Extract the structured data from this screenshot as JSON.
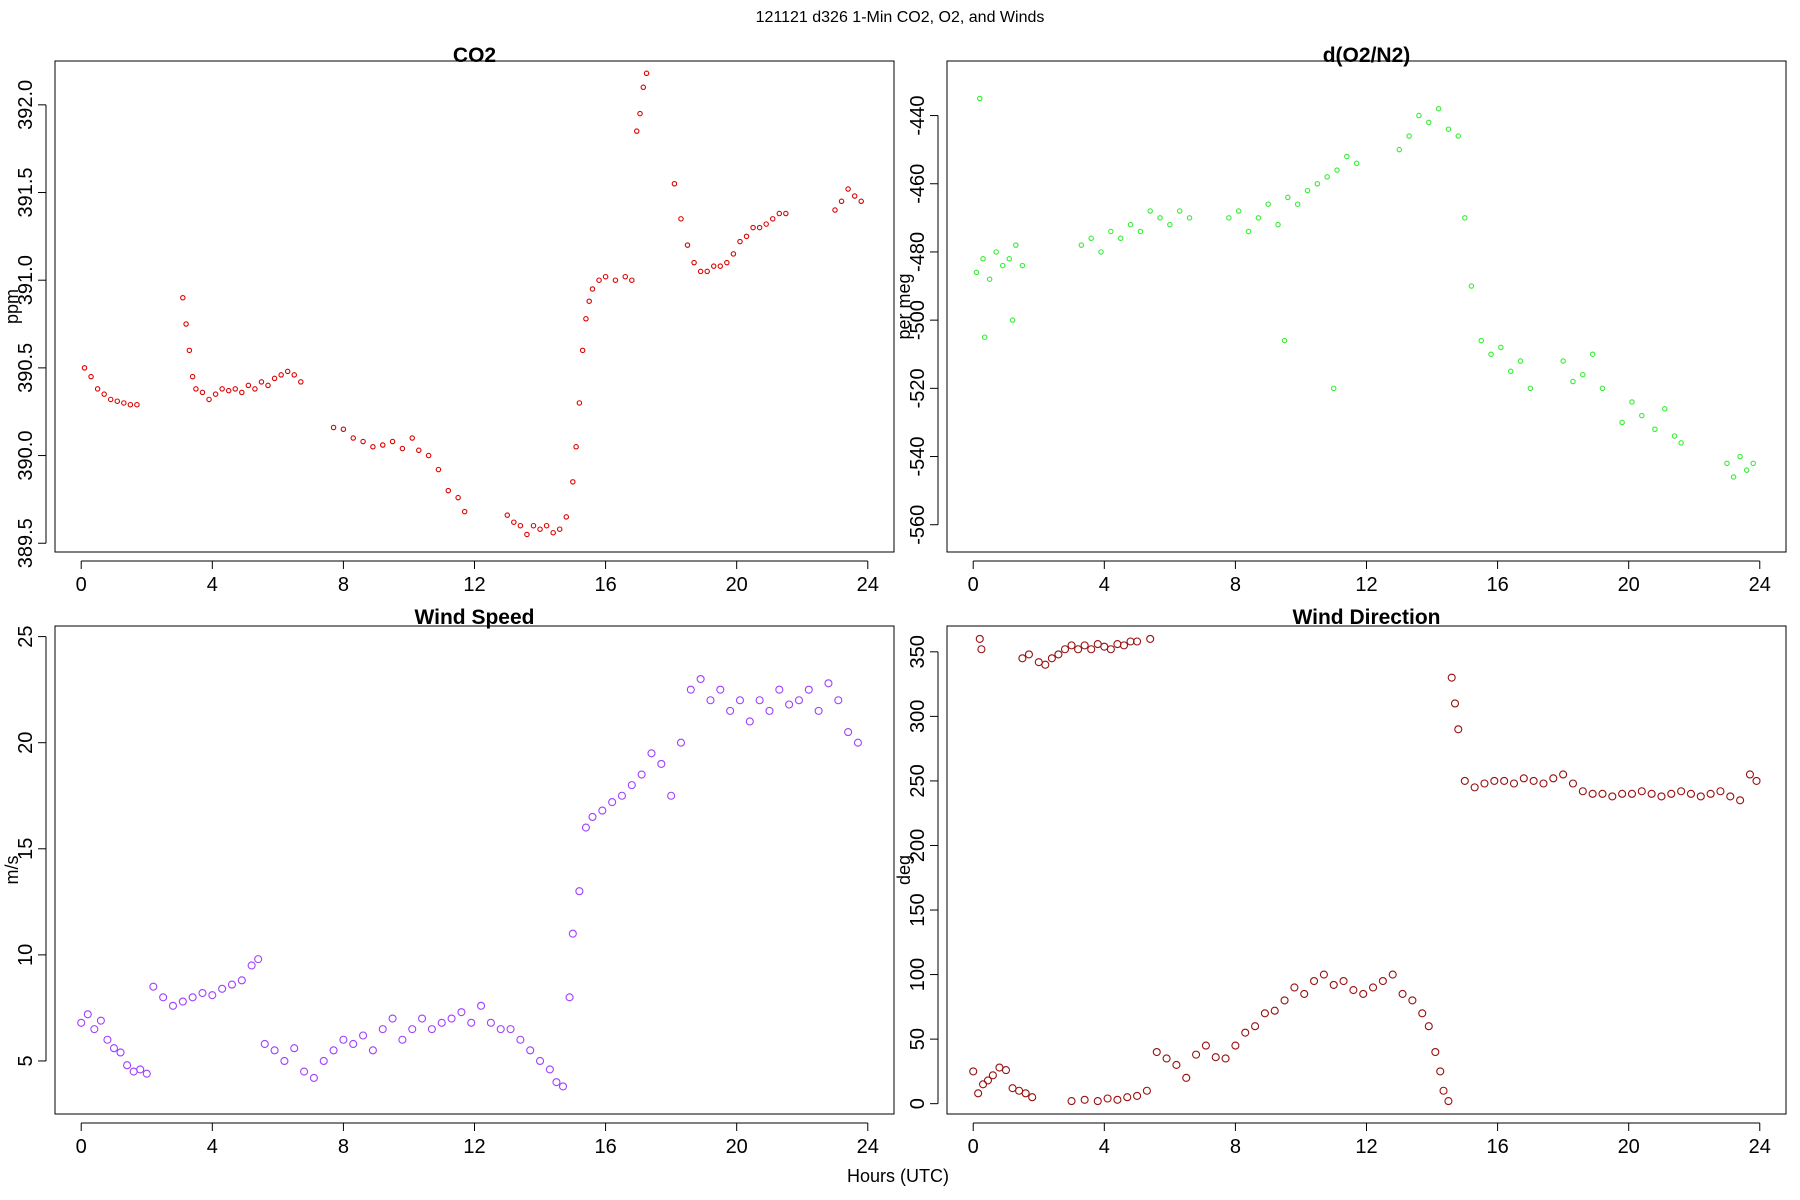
{
  "figure": {
    "title": "121121   d326   1-Min CO2, O2, and Winds",
    "xlabel": "Hours (UTC)"
  },
  "chart_data": [
    {
      "id": "co2",
      "type": "scatter",
      "title": "CO2",
      "xlabel": "",
      "ylabel": "ppm",
      "xlim": [
        -0.8,
        24.8
      ],
      "ylim": [
        389.45,
        392.25
      ],
      "x_ticks": [
        0,
        4,
        8,
        12,
        16,
        20,
        24
      ],
      "y_ticks": [
        389.5,
        390.0,
        390.5,
        391.0,
        391.5,
        392.0
      ],
      "y_tick_labels": [
        "389.5",
        "390.0",
        "390.5",
        "391.0",
        "391.5",
        "392.0"
      ],
      "grid": false,
      "color": "#dd0000",
      "marker_radius": 2.2,
      "series": [
        {
          "x": [
            0.1,
            0.3,
            0.5,
            0.7,
            0.9,
            1.1,
            1.3,
            1.5,
            1.7,
            3.1,
            3.2,
            3.3,
            3.4,
            3.5,
            3.7,
            3.9,
            4.1,
            4.3,
            4.5,
            4.7,
            4.9,
            5.1,
            5.3,
            5.5,
            5.7,
            5.9,
            6.1,
            6.3,
            6.5,
            6.7,
            7.7,
            8.0,
            8.3,
            8.6,
            8.9,
            9.2,
            9.5,
            9.8,
            10.1,
            10.3,
            10.6,
            10.9,
            11.2,
            11.5,
            11.7,
            13.0,
            13.2,
            13.4,
            13.6,
            13.8,
            14.0,
            14.2,
            14.4,
            14.6,
            14.8,
            15.0,
            15.1,
            15.2,
            15.3,
            15.4,
            15.5,
            15.6,
            15.8,
            16.0,
            16.3,
            16.6,
            16.8,
            16.95,
            17.05,
            17.15,
            17.25,
            18.1,
            18.3,
            18.5,
            18.7,
            18.9,
            19.1,
            19.3,
            19.5,
            19.7,
            19.9,
            20.1,
            20.3,
            20.5,
            20.7,
            20.9,
            21.1,
            21.3,
            21.5,
            23.0,
            23.2,
            23.4,
            23.6,
            23.8
          ],
          "y": [
            390.5,
            390.45,
            390.38,
            390.35,
            390.32,
            390.31,
            390.3,
            390.29,
            390.29,
            390.9,
            390.75,
            390.6,
            390.45,
            390.38,
            390.36,
            390.32,
            390.35,
            390.38,
            390.37,
            390.38,
            390.36,
            390.4,
            390.38,
            390.42,
            390.4,
            390.44,
            390.46,
            390.48,
            390.46,
            390.42,
            390.16,
            390.15,
            390.1,
            390.08,
            390.05,
            390.06,
            390.08,
            390.04,
            390.1,
            390.03,
            390.0,
            389.92,
            389.8,
            389.76,
            389.68,
            389.66,
            389.62,
            389.6,
            389.55,
            389.6,
            389.58,
            389.6,
            389.56,
            389.58,
            389.65,
            389.85,
            390.05,
            390.3,
            390.6,
            390.78,
            390.88,
            390.95,
            391.0,
            391.02,
            391.0,
            391.02,
            391.0,
            391.85,
            391.95,
            392.1,
            392.18,
            391.55,
            391.35,
            391.2,
            391.1,
            391.05,
            391.05,
            391.08,
            391.08,
            391.1,
            391.15,
            391.22,
            391.25,
            391.3,
            391.3,
            391.32,
            391.35,
            391.38,
            391.38,
            391.4,
            391.45,
            391.52,
            391.48,
            391.45
          ]
        }
      ]
    },
    {
      "id": "o2",
      "type": "scatter",
      "title": "d(O2/N2)",
      "xlabel": "",
      "ylabel": "per meg",
      "xlim": [
        -0.8,
        24.8
      ],
      "ylim": [
        -568,
        -424
      ],
      "x_ticks": [
        0,
        4,
        8,
        12,
        16,
        20,
        24
      ],
      "y_ticks": [
        -560,
        -540,
        -520,
        -500,
        -480,
        -460,
        -440
      ],
      "y_tick_labels": [
        "-560",
        "-540",
        "-520",
        "-500",
        "-480",
        "-460",
        "-440"
      ],
      "grid": false,
      "color": "#33ee33",
      "marker_radius": 2.2,
      "series": [
        {
          "x": [
            0.1,
            0.3,
            0.5,
            0.7,
            0.9,
            1.1,
            1.3,
            1.5,
            3.3,
            3.6,
            3.9,
            4.2,
            4.5,
            4.8,
            5.1,
            5.4,
            5.7,
            6.0,
            6.3,
            6.6,
            7.8,
            8.1,
            8.4,
            8.7,
            9.0,
            9.3,
            9.6,
            9.9,
            10.2,
            10.5,
            10.8,
            11.1,
            11.4,
            11.7,
            13.0,
            13.3,
            13.6,
            13.9,
            14.2,
            14.5,
            14.8,
            15.0,
            15.2,
            15.5,
            15.8,
            16.1,
            16.4,
            16.7,
            17.0,
            18.0,
            18.3,
            18.6,
            18.9,
            19.2,
            19.8,
            20.1,
            20.4,
            20.8,
            21.1,
            21.4,
            21.6,
            23.0,
            23.2,
            23.4,
            23.6,
            23.8,
            0.2,
            0.35,
            1.2,
            9.5,
            11.0
          ],
          "y": [
            -486,
            -482,
            -488,
            -480,
            -484,
            -482,
            -478,
            -484,
            -478,
            -476,
            -480,
            -474,
            -476,
            -472,
            -474,
            -468,
            -470,
            -472,
            -468,
            -470,
            -470,
            -468,
            -474,
            -470,
            -466,
            -472,
            -464,
            -466,
            -462,
            -460,
            -458,
            -456,
            -452,
            -454,
            -450,
            -446,
            -440,
            -442,
            -438,
            -444,
            -446,
            -470,
            -490,
            -506,
            -510,
            -508,
            -515,
            -512,
            -520,
            -512,
            -518,
            -516,
            -510,
            -520,
            -530,
            -524,
            -528,
            -532,
            -526,
            -534,
            -536,
            -542,
            -546,
            -540,
            -544,
            -542,
            -435,
            -505,
            -500,
            -506,
            -520
          ]
        }
      ]
    },
    {
      "id": "wind-speed",
      "type": "scatter",
      "title": "Wind Speed",
      "xlabel": "",
      "ylabel": "m/s",
      "xlim": [
        -0.8,
        24.8
      ],
      "ylim": [
        2.5,
        25.5
      ],
      "x_ticks": [
        0,
        4,
        8,
        12,
        16,
        20,
        24
      ],
      "y_ticks": [
        5,
        10,
        15,
        20,
        25
      ],
      "y_tick_labels": [
        "5",
        "10",
        "15",
        "20",
        "25"
      ],
      "grid": false,
      "color": "#a040ff",
      "marker_radius": 3.5,
      "series": [
        {
          "x": [
            0.0,
            0.2,
            0.4,
            0.6,
            0.8,
            1.0,
            1.2,
            1.4,
            1.6,
            1.8,
            2.0,
            2.2,
            2.5,
            2.8,
            3.1,
            3.4,
            3.7,
            4.0,
            4.3,
            4.6,
            4.9,
            5.2,
            5.4,
            5.6,
            5.9,
            6.2,
            6.5,
            6.8,
            7.1,
            7.4,
            7.7,
            8.0,
            8.3,
            8.6,
            8.9,
            9.2,
            9.5,
            9.8,
            10.1,
            10.4,
            10.7,
            11.0,
            11.3,
            11.6,
            11.9,
            12.2,
            12.5,
            12.8,
            13.1,
            13.4,
            13.7,
            14.0,
            14.3,
            14.5,
            14.7,
            14.9,
            15.0,
            15.2,
            15.4,
            15.6,
            15.9,
            16.2,
            16.5,
            16.8,
            17.1,
            17.4,
            17.7,
            18.0,
            18.3,
            18.6,
            18.9,
            19.2,
            19.5,
            19.8,
            20.1,
            20.4,
            20.7,
            21.0,
            21.3,
            21.6,
            21.9,
            22.2,
            22.5,
            22.8,
            23.1,
            23.4,
            23.7
          ],
          "y": [
            6.8,
            7.2,
            6.5,
            6.9,
            6.0,
            5.6,
            5.4,
            4.8,
            4.5,
            4.6,
            4.4,
            8.5,
            8.0,
            7.6,
            7.8,
            8.0,
            8.2,
            8.1,
            8.4,
            8.6,
            8.8,
            9.5,
            9.8,
            5.8,
            5.5,
            5.0,
            5.6,
            4.5,
            4.2,
            5.0,
            5.5,
            6.0,
            5.8,
            6.2,
            5.5,
            6.5,
            7.0,
            6.0,
            6.5,
            7.0,
            6.5,
            6.8,
            7.0,
            7.3,
            6.8,
            7.6,
            6.8,
            6.5,
            6.5,
            6.0,
            5.5,
            5.0,
            4.6,
            4.0,
            3.8,
            8.0,
            11.0,
            13.0,
            16.0,
            16.5,
            16.8,
            17.2,
            17.5,
            18.0,
            18.5,
            19.5,
            19.0,
            17.5,
            20.0,
            22.5,
            23.0,
            22.0,
            22.5,
            21.5,
            22.0,
            21.0,
            22.0,
            21.5,
            22.5,
            21.8,
            22.0,
            22.5,
            21.5,
            22.8,
            22.0,
            20.5,
            20.0
          ]
        }
      ]
    },
    {
      "id": "wind-direction",
      "type": "scatter",
      "title": "Wind Direction",
      "xlabel": "",
      "ylabel": "deg",
      "xlim": [
        -0.8,
        24.8
      ],
      "ylim": [
        -8,
        370
      ],
      "x_ticks": [
        0,
        4,
        8,
        12,
        16,
        20,
        24
      ],
      "y_ticks": [
        0,
        50,
        100,
        150,
        200,
        250,
        300,
        350
      ],
      "y_tick_labels": [
        "0",
        "50",
        "100",
        "150",
        "200",
        "250",
        "300",
        "350"
      ],
      "grid": false,
      "color": "#991111",
      "marker_radius": 3.5,
      "series": [
        {
          "x": [
            0.0,
            0.15,
            0.3,
            0.45,
            0.6,
            0.8,
            1.0,
            1.2,
            1.4,
            1.6,
            1.8,
            0.2,
            0.25,
            1.5,
            1.7,
            2.0,
            2.2,
            2.4,
            2.6,
            2.8,
            3.0,
            3.2,
            3.4,
            3.6,
            3.8,
            4.0,
            4.2,
            4.4,
            4.6,
            4.8,
            5.0,
            5.4,
            3.0,
            3.4,
            3.8,
            4.1,
            4.4,
            4.7,
            5.0,
            5.3,
            5.6,
            5.9,
            6.2,
            6.5,
            6.8,
            7.1,
            7.4,
            7.7,
            8.0,
            8.3,
            8.6,
            8.9,
            9.2,
            9.5,
            9.8,
            10.1,
            10.4,
            10.7,
            11.0,
            11.3,
            11.6,
            11.9,
            12.2,
            12.5,
            12.8,
            13.1,
            13.4,
            13.7,
            13.9,
            14.1,
            14.25,
            14.35,
            14.5,
            14.6,
            14.7,
            14.8,
            15.0,
            15.3,
            15.6,
            15.9,
            16.2,
            16.5,
            16.8,
            17.1,
            17.4,
            17.7,
            18.0,
            18.3,
            18.6,
            18.9,
            19.2,
            19.5,
            19.8,
            20.1,
            20.4,
            20.7,
            21.0,
            21.3,
            21.6,
            21.9,
            22.2,
            22.5,
            22.8,
            23.1,
            23.4,
            23.7,
            23.9
          ],
          "y": [
            25,
            8,
            15,
            18,
            22,
            28,
            26,
            12,
            10,
            8,
            5,
            360,
            352,
            345,
            348,
            342,
            340,
            345,
            348,
            352,
            355,
            352,
            355,
            352,
            356,
            354,
            352,
            356,
            355,
            358,
            358,
            360,
            2,
            3,
            2,
            4,
            3,
            5,
            6,
            10,
            40,
            35,
            30,
            20,
            38,
            45,
            36,
            35,
            45,
            55,
            60,
            70,
            72,
            80,
            90,
            85,
            95,
            100,
            92,
            95,
            88,
            85,
            90,
            95,
            100,
            85,
            80,
            70,
            60,
            40,
            25,
            10,
            2,
            330,
            310,
            290,
            250,
            245,
            248,
            250,
            250,
            248,
            252,
            250,
            248,
            252,
            255,
            248,
            242,
            240,
            240,
            238,
            240,
            240,
            242,
            240,
            238,
            240,
            242,
            240,
            238,
            240,
            242,
            238,
            235,
            255,
            250
          ]
        }
      ]
    }
  ]
}
